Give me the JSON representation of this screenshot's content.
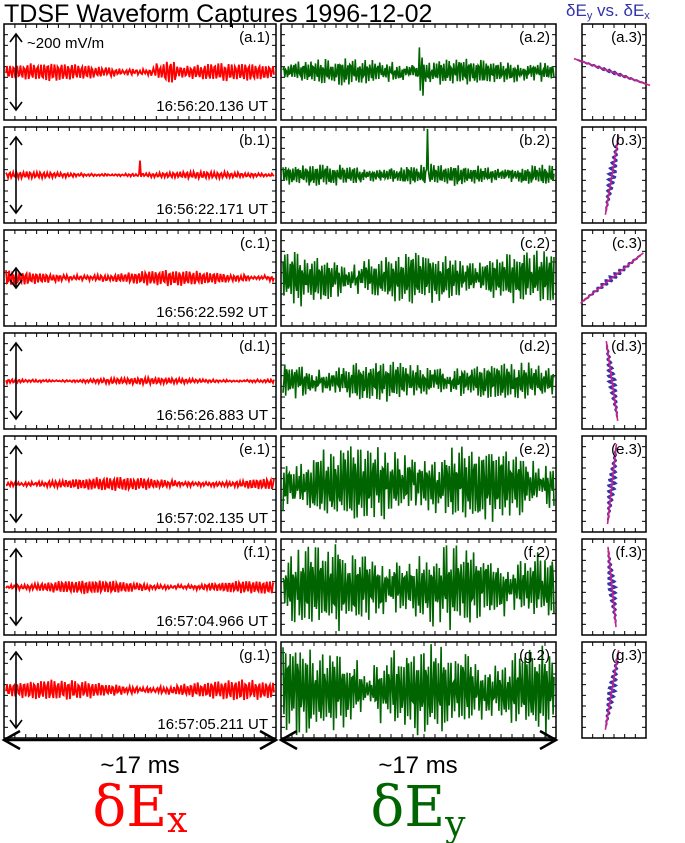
{
  "chart_data": {
    "type": "line",
    "title": "TDSF Waveform Captures 1996-12-02",
    "hodogram_title": {
      "a": "δE",
      "a_sub": "y",
      "vs": " vs. δE",
      "b_sub": "x"
    },
    "scale_label": "~200 mV/m",
    "duration_label": "~17 ms",
    "xlabel_left": {
      "base": "δE",
      "sub": "x"
    },
    "xlabel_right": {
      "base": "δE",
      "sub": "y"
    },
    "colors": {
      "ex": "#ff0000",
      "ey": "#006400",
      "hodogram": "#3333aa",
      "fit_line": "#cc2288",
      "text": "#000000"
    },
    "grid": false,
    "rows": [
      {
        "time": "16:56:20.136 UT",
        "labels": [
          "(a.1)",
          "(a.2)",
          "(a.3)"
        ],
        "ex_amp": 0.13,
        "ey_amp": 0.28,
        "fit_slope": -0.35
      },
      {
        "time": "16:56:22.171 UT",
        "labels": [
          "(b.1)",
          "(b.2)",
          "(b.3)"
        ],
        "ex_amp": 0.05,
        "ey_amp": 0.22,
        "fit_slope": 6.0
      },
      {
        "time": "16:56:22.592 UT",
        "labels": [
          "(c.1)",
          "(c.2)",
          "(c.3)"
        ],
        "ex_amp": 0.12,
        "ey_amp": 0.55,
        "fit_slope": 0.8
      },
      {
        "time": "16:56:26.883 UT",
        "labels": [
          "(d.1)",
          "(d.2)",
          "(d.3)"
        ],
        "ex_amp": 0.05,
        "ey_amp": 0.4,
        "fit_slope": -7.0
      },
      {
        "time": "16:57:02.135 UT",
        "labels": [
          "(e.1)",
          "(e.2)",
          "(e.3)"
        ],
        "ex_amp": 0.1,
        "ey_amp": 0.8,
        "fit_slope": 9.0
      },
      {
        "time": "16:57:04.966 UT",
        "labels": [
          "(f.1)",
          "(f.2)",
          "(f.3)"
        ],
        "ex_amp": 0.1,
        "ey_amp": 0.85,
        "fit_slope": -10.0
      },
      {
        "time": "16:57:05.211 UT",
        "labels": [
          "(g.1)",
          "(g.2)",
          "(g.3)"
        ],
        "ex_amp": 0.15,
        "ey_amp": 0.9,
        "fit_slope": 6.0
      }
    ]
  }
}
